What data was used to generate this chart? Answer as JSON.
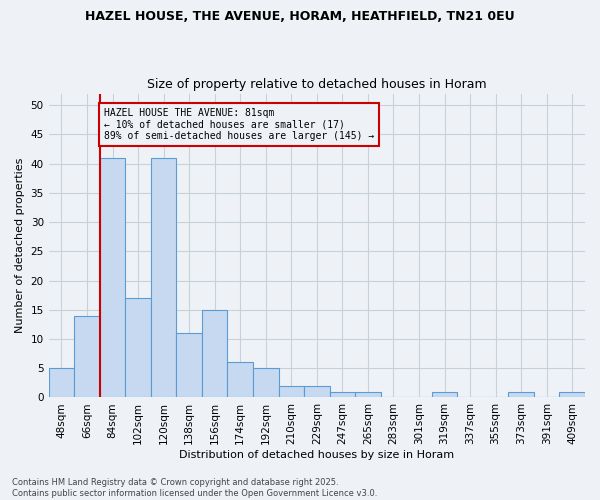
{
  "title_line1": "HAZEL HOUSE, THE AVENUE, HORAM, HEATHFIELD, TN21 0EU",
  "title_line2": "Size of property relative to detached houses in Horam",
  "xlabel": "Distribution of detached houses by size in Horam",
  "ylabel": "Number of detached properties",
  "bins": [
    "48sqm",
    "66sqm",
    "84sqm",
    "102sqm",
    "120sqm",
    "138sqm",
    "156sqm",
    "174sqm",
    "192sqm",
    "210sqm",
    "229sqm",
    "247sqm",
    "265sqm",
    "283sqm",
    "301sqm",
    "319sqm",
    "337sqm",
    "355sqm",
    "373sqm",
    "391sqm",
    "409sqm"
  ],
  "values": [
    5,
    14,
    41,
    17,
    41,
    11,
    15,
    6,
    5,
    2,
    2,
    1,
    1,
    0,
    0,
    1,
    0,
    0,
    1,
    0,
    1
  ],
  "bar_color": "#c6d9f0",
  "bar_edge_color": "#5b9bd5",
  "grid_color": "#c8d0d8",
  "vline_color": "#cc0000",
  "vline_x_index": 2,
  "annotation_text": "HAZEL HOUSE THE AVENUE: 81sqm\n← 10% of detached houses are smaller (17)\n89% of semi-detached houses are larger (145) →",
  "annotation_box_color": "#cc0000",
  "annotation_bg": "#eef2f7",
  "ylim": [
    0,
    52
  ],
  "yticks": [
    0,
    5,
    10,
    15,
    20,
    25,
    30,
    35,
    40,
    45,
    50
  ],
  "footer_line1": "Contains HM Land Registry data © Crown copyright and database right 2025.",
  "footer_line2": "Contains public sector information licensed under the Open Government Licence v3.0.",
  "bg_color": "#eef2f7",
  "title_fontsize": 9,
  "subtitle_fontsize": 9,
  "label_fontsize": 8,
  "tick_fontsize": 7.5,
  "footer_fontsize": 6
}
